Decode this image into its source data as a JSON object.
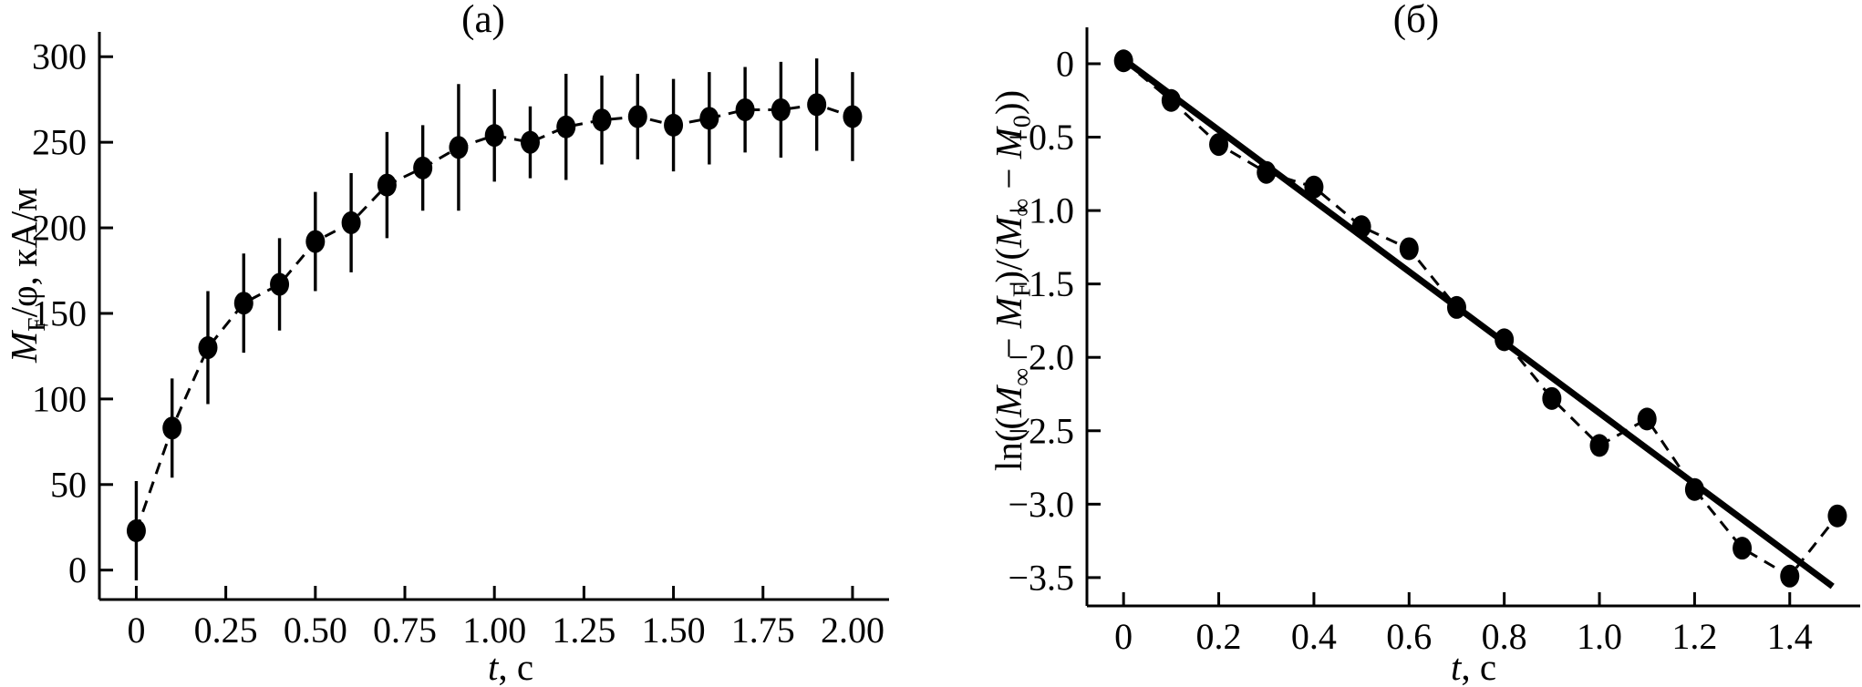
{
  "figure": {
    "background": "#ffffff",
    "ink_color": "#000000"
  },
  "panels": [
    {
      "id": "a",
      "title": "(a)",
      "xlabel_rich": "*t*, с",
      "ylabel_rich": "*M*_{F}/φ, кА/м"
    },
    {
      "id": "b",
      "title": "(б)",
      "xlabel_rich": "*t*, с",
      "ylabel_rich": "ln((*M*_{∞} − *M*_{F})/(*M*_{∞} − *M*_{0}))"
    }
  ],
  "chart_data": [
    {
      "type": "scatter",
      "panel": "a",
      "title": "(a)",
      "xlabel": "t, с",
      "ylabel": "M_F/φ, кА/м",
      "marker": "filled-black-circle",
      "line_style": "dashed",
      "grid": false,
      "legend": "none",
      "x": [
        0,
        0.1,
        0.2,
        0.3,
        0.4,
        0.5,
        0.6,
        0.7,
        0.8,
        0.9,
        1.0,
        1.1,
        1.2,
        1.3,
        1.4,
        1.5,
        1.6,
        1.7,
        1.8,
        1.9,
        2.0
      ],
      "y": [
        23,
        83,
        130,
        156,
        167,
        192,
        203,
        225,
        235,
        247,
        254,
        250,
        259,
        263,
        265,
        260,
        264,
        269,
        269,
        272,
        265
      ],
      "yerr": [
        29,
        29,
        33,
        29,
        27,
        29,
        29,
        31,
        25,
        37,
        27,
        21,
        31,
        26,
        25,
        27,
        27,
        25,
        28,
        27,
        26
      ],
      "xlim": [
        -0.103,
        2.102
      ],
      "ylim": [
        -17.2,
        314.5
      ],
      "x_ticks": [
        0,
        0.25,
        0.5,
        0.75,
        1.0,
        1.25,
        1.5,
        1.75,
        2.0
      ],
      "x_tick_labels": [
        "0",
        "0.25",
        "0.50",
        "0.75",
        "1.00",
        "1.25",
        "1.50",
        "1.75",
        "2.00"
      ],
      "y_ticks": [
        0,
        50,
        100,
        150,
        200,
        250,
        300
      ],
      "y_tick_labels": [
        "0",
        "50",
        "100",
        "150",
        "200",
        "250",
        "300"
      ]
    },
    {
      "type": "scatter",
      "panel": "b",
      "title": "(б)",
      "xlabel": "t, с",
      "ylabel": "ln((M∞ − MF)/(M∞ − M0))",
      "marker": "filled-black-circle",
      "line_style": "dashed",
      "grid": false,
      "legend": "none",
      "x": [
        0,
        0.1,
        0.2,
        0.3,
        0.4,
        0.5,
        0.6,
        0.7,
        0.8,
        0.9,
        1.0,
        1.1,
        1.2,
        1.3,
        1.4,
        1.5
      ],
      "y": [
        0.02,
        -0.25,
        -0.55,
        -0.74,
        -0.84,
        -1.11,
        -1.26,
        -1.66,
        -1.88,
        -2.28,
        -2.6,
        -2.42,
        -2.9,
        -3.3,
        -3.49,
        -3.08
      ],
      "fit_line": {
        "x": [
          0,
          1.49
        ],
        "y": [
          0.03,
          -3.56
        ]
      },
      "xlim": [
        -0.077,
        1.548
      ],
      "ylim": [
        -3.693,
        0.248
      ],
      "x_ticks": [
        0,
        0.2,
        0.4,
        0.6,
        0.8,
        1.0,
        1.2,
        1.4
      ],
      "x_tick_labels": [
        "0",
        "0.2",
        "0.4",
        "0.6",
        "0.8",
        "1.0",
        "1.2",
        "1.4"
      ],
      "y_ticks": [
        0,
        -0.5,
        -1.0,
        -1.5,
        -2.0,
        -2.5,
        -3.0,
        -3.5
      ],
      "y_tick_labels": [
        "0",
        "−0.5",
        "−1.0",
        "−1.5",
        "−2.0",
        "−2.5",
        "−3.0",
        "−3.5"
      ]
    }
  ]
}
